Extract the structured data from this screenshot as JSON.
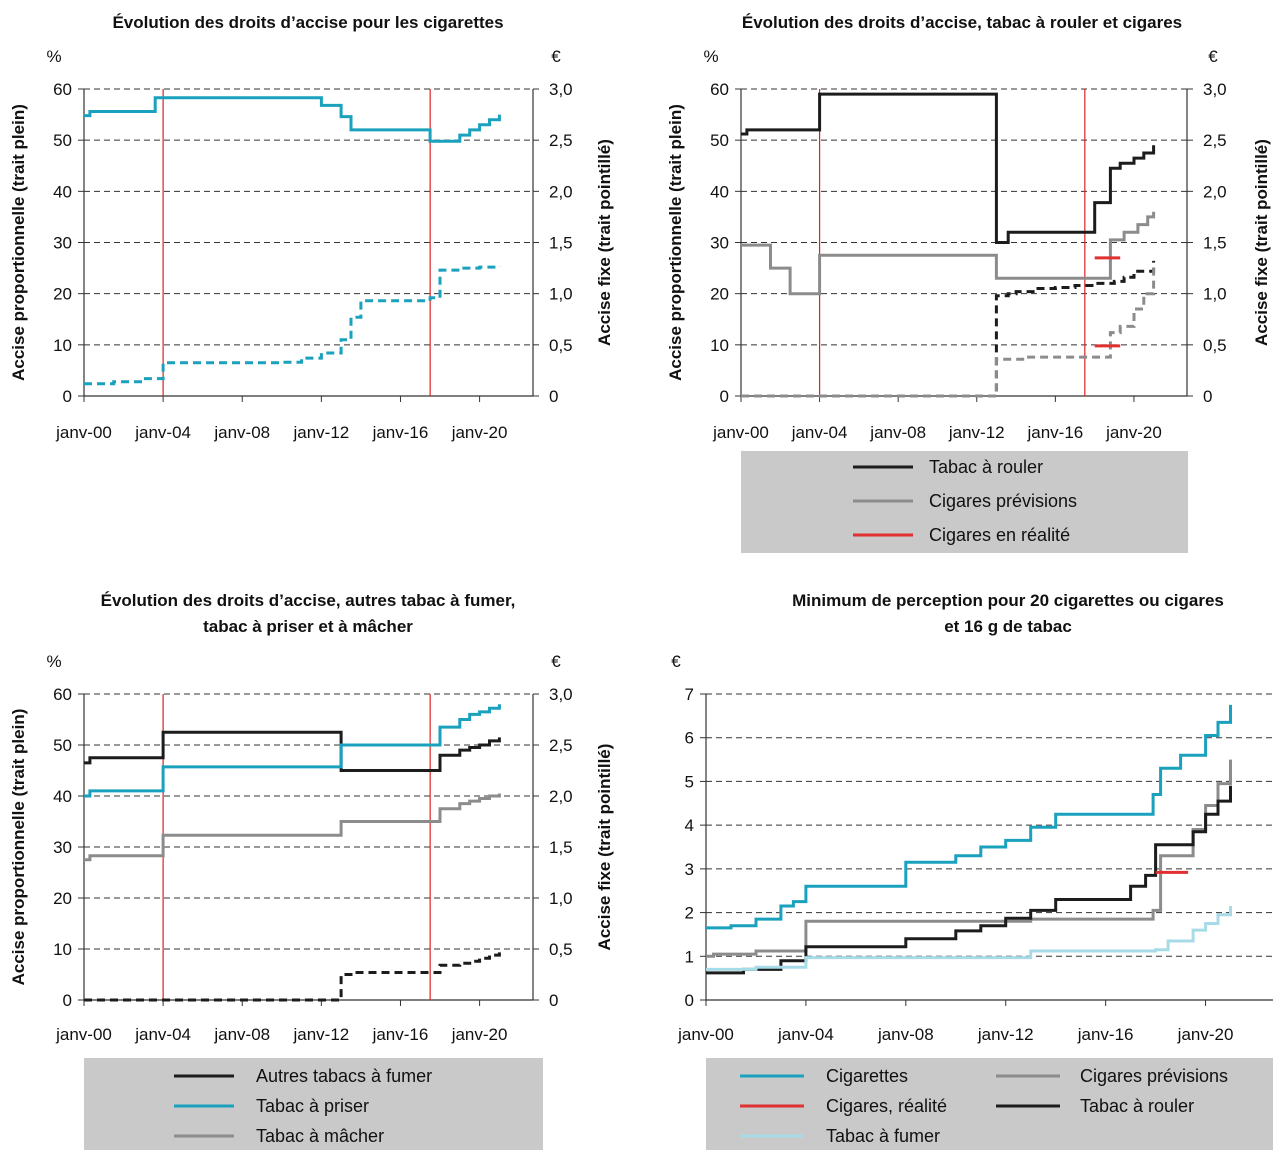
{
  "chart_data": [
    {
      "type": "line",
      "title": "Évolution des droits d’accise pour les cigarettes",
      "ylabel": "Accise proportionnelle (trait plein)",
      "y2label": "Accise fixe (trait pointillé)",
      "yunit": "%",
      "y2unit": "€",
      "xticks": [
        "janv-00",
        "janv-04",
        "janv-08",
        "janv-12",
        "janv-16",
        "janv-20"
      ],
      "xlim": [
        2000,
        2022.7
      ],
      "ylim": [
        0,
        60
      ],
      "y2lim": [
        0,
        3.0
      ],
      "yticks": [
        "0",
        "10",
        "20",
        "30",
        "40",
        "50",
        "60"
      ],
      "y2ticks": [
        "0",
        "0,5",
        "1,0",
        "1,5",
        "2,0",
        "2,5",
        "3,0"
      ],
      "grid": true,
      "vlines": [
        2004.0,
        2017.5
      ],
      "series": [
        {
          "axis": "left",
          "style": "solid",
          "color": "#1aa1be",
          "x": [
            2000.0,
            2000.3,
            2003.6,
            2003.6,
            2010.9,
            2012.0,
            2013.0,
            2013.5,
            2017.5,
            2018.0,
            2019.0,
            2019.5,
            2020.0,
            2020.5,
            2021.0
          ],
          "y": [
            54.8,
            55.6,
            55.6,
            58.3,
            58.3,
            56.8,
            54.6,
            52.0,
            49.8,
            49.8,
            51.0,
            52.0,
            53.0,
            54.0,
            55.0
          ]
        },
        {
          "axis": "right",
          "style": "dashed",
          "color": "#1aa1be",
          "x": [
            2000.0,
            2001.5,
            2003.0,
            2004.0,
            2010.0,
            2011.0,
            2012.0,
            2013.0,
            2013.5,
            2014.0,
            2017.5,
            2018.0,
            2019.0,
            2020.0,
            2021.0
          ],
          "y": [
            0.12,
            0.14,
            0.17,
            0.325,
            0.33,
            0.37,
            0.42,
            0.55,
            0.77,
            0.93,
            0.96,
            1.23,
            1.25,
            1.26,
            1.27
          ]
        }
      ]
    },
    {
      "type": "line",
      "title": "Évolution des droits d’accise, tabac à rouler et cigares",
      "ylabel": "Accise proportionnelle (trait plein)",
      "y2label": "Accise fixe (trait pointillé)",
      "yunit": "%",
      "y2unit": "€",
      "xticks": [
        "janv-00",
        "janv-04",
        "janv-08",
        "janv-12",
        "janv-16",
        "janv-20"
      ],
      "xlim": [
        2000,
        2022.7
      ],
      "ylim": [
        0,
        60
      ],
      "y2lim": [
        0,
        3.0
      ],
      "yticks": [
        "0",
        "10",
        "20",
        "30",
        "40",
        "50",
        "60"
      ],
      "y2ticks": [
        "0",
        "0,5",
        "1,0",
        "1,5",
        "2,0",
        "2,5",
        "3,0"
      ],
      "grid": true,
      "vlines": [
        2004.0,
        2017.5
      ],
      "legend": [
        "Tabac à rouler",
        "Cigares prévisions",
        "Cigares en réalité"
      ],
      "series": [
        {
          "name": "Tabac à rouler",
          "axis": "left",
          "style": "solid",
          "color": "#1c1c1c",
          "x": [
            2000.0,
            2000.3,
            2004.0,
            2004.0,
            2013.0,
            2013.0,
            2013.6,
            2017.5,
            2018.0,
            2018.8,
            2019.3,
            2020.0,
            2020.5,
            2021.0
          ],
          "y": [
            51.2,
            52.0,
            52.0,
            59.0,
            59.0,
            30.0,
            32.0,
            32.0,
            37.8,
            44.5,
            45.5,
            46.5,
            47.5,
            49.0
          ]
        },
        {
          "name": "Cigares prévisions",
          "axis": "left",
          "style": "solid",
          "color": "#8c8c8c",
          "x": [
            2000.0,
            2000.8,
            2001.5,
            2002.5,
            2004.0,
            2004.0,
            2013.0,
            2013.0,
            2018.0,
            2018.8,
            2019.5,
            2020.2,
            2020.7,
            2021.0
          ],
          "y": [
            29.5,
            29.5,
            25.0,
            20.0,
            20.0,
            27.5,
            27.5,
            23.0,
            23.0,
            30.5,
            32.0,
            33.5,
            35.0,
            36.0
          ]
        },
        {
          "name": "Cigares en réalité",
          "axis": "left",
          "style": "solid",
          "color": "#e03030",
          "x": [
            2018.0,
            2019.3
          ],
          "y": [
            27.0,
            27.0
          ]
        },
        {
          "name": "Tabac à rouler",
          "axis": "right",
          "style": "dashed",
          "color": "#1c1c1c",
          "x": [
            2000.0,
            2013.0,
            2013.0,
            2013.6,
            2014.0,
            2015.0,
            2016.0,
            2017.0,
            2018.0,
            2019.0,
            2019.5,
            2020.0,
            2021.0
          ],
          "y": [
            0.0,
            0.0,
            0.98,
            1.0,
            1.02,
            1.05,
            1.06,
            1.08,
            1.1,
            1.12,
            1.16,
            1.22,
            1.32
          ]
        },
        {
          "name": "Cigares prévisions",
          "axis": "right",
          "style": "dashed",
          "color": "#8c8c8c",
          "x": [
            2000.0,
            2013.0,
            2013.0,
            2014.5,
            2018.0,
            2018.8,
            2019.3,
            2020.0,
            2020.5,
            2021.0
          ],
          "y": [
            0.0,
            0.0,
            0.36,
            0.38,
            0.38,
            0.62,
            0.68,
            0.85,
            1.0,
            1.3
          ]
        },
        {
          "name": "Cigares en réalité",
          "axis": "right",
          "style": "solid",
          "color": "#e03030",
          "x": [
            2018.0,
            2019.3
          ],
          "y": [
            0.49,
            0.49
          ]
        }
      ]
    },
    {
      "type": "line",
      "title": "Évolution des droits d’accise, autres tabac à fumer,",
      "title_line2": "tabac à priser et à mâcher",
      "ylabel": "Accise proportionnelle (trait plein)",
      "y2label": "Accise fixe (trait pointillé)",
      "yunit": "%",
      "y2unit": "€",
      "xticks": [
        "janv-00",
        "janv-04",
        "janv-08",
        "janv-12",
        "janv-16",
        "janv-20"
      ],
      "xlim": [
        2000,
        2022.7
      ],
      "ylim": [
        0,
        60
      ],
      "y2lim": [
        0,
        3.0
      ],
      "yticks": [
        "0",
        "10",
        "20",
        "30",
        "40",
        "50",
        "60"
      ],
      "y2ticks": [
        "0",
        "0,5",
        "1,0",
        "1,5",
        "2,0",
        "2,5",
        "3,0"
      ],
      "grid": true,
      "vlines": [
        2004.0,
        2017.5
      ],
      "legend": [
        "Autres tabacs à fumer",
        "Tabac à priser",
        "Tabac à mâcher"
      ],
      "series": [
        {
          "name": "Autres tabacs à fumer",
          "axis": "left",
          "style": "solid",
          "color": "#1c1c1c",
          "x": [
            2000.0,
            2000.3,
            2004.0,
            2004.0,
            2013.0,
            2013.0,
            2018.0,
            2018.0,
            2019.0,
            2019.5,
            2020.0,
            2020.5,
            2021.0
          ],
          "y": [
            46.5,
            47.5,
            47.5,
            52.5,
            52.5,
            45.0,
            45.0,
            48.0,
            49.0,
            49.5,
            50.0,
            50.8,
            51.5
          ]
        },
        {
          "name": "Tabac à priser",
          "axis": "left",
          "style": "solid",
          "color": "#1aa1be",
          "x": [
            2000.0,
            2000.3,
            2004.0,
            2004.0,
            2013.0,
            2013.0,
            2018.0,
            2018.0,
            2019.0,
            2019.5,
            2020.0,
            2020.5,
            2021.0
          ],
          "y": [
            40.0,
            41.0,
            41.0,
            45.7,
            45.7,
            50.0,
            50.0,
            53.5,
            55.0,
            56.0,
            56.5,
            57.2,
            58.0
          ]
        },
        {
          "name": "Tabac à mâcher",
          "axis": "left",
          "style": "solid",
          "color": "#8c8c8c",
          "x": [
            2000.0,
            2000.3,
            2004.0,
            2004.0,
            2013.0,
            2013.0,
            2018.0,
            2018.0,
            2019.0,
            2019.5,
            2020.0,
            2020.5,
            2021.0
          ],
          "y": [
            27.5,
            28.3,
            28.3,
            32.3,
            32.3,
            35.0,
            35.0,
            37.5,
            38.5,
            39.0,
            39.5,
            40.0,
            40.5
          ]
        },
        {
          "name": "Autres tabacs à fumer",
          "axis": "right",
          "style": "dashed",
          "color": "#1c1c1c",
          "x": [
            2000.0,
            2013.0,
            2013.0,
            2013.5,
            2018.0,
            2018.0,
            2019.0,
            2019.5,
            2020.0,
            2020.5,
            2021.0
          ],
          "y": [
            0.0,
            0.0,
            0.25,
            0.27,
            0.28,
            0.34,
            0.36,
            0.38,
            0.41,
            0.44,
            0.47
          ]
        }
      ]
    },
    {
      "type": "line",
      "title": "Minimum de perception pour 20 cigarettes ou cigares",
      "title_line2": "et 16 g de tabac",
      "yunit": "€",
      "xticks": [
        "janv-00",
        "janv-04",
        "janv-08",
        "janv-12",
        "janv-16",
        "janv-20"
      ],
      "xlim": [
        2000,
        2022.7
      ],
      "ylim": [
        0,
        7
      ],
      "yticks": [
        "0",
        "1",
        "2",
        "3",
        "4",
        "5",
        "6",
        "7"
      ],
      "grid": true,
      "legend": [
        "Cigarettes",
        "Cigares, réalité",
        "Tabac à fumer",
        "Cigares prévisions",
        "Tabac à rouler"
      ],
      "series": [
        {
          "name": "Cigarettes",
          "style": "solid",
          "color": "#1aa1be",
          "x": [
            2000.0,
            2001.0,
            2002.0,
            2003.0,
            2003.5,
            2004.0,
            2008.0,
            2010.0,
            2011.0,
            2012.0,
            2013.0,
            2014.0,
            2017.9,
            2018.2,
            2019.0,
            2020.0,
            2020.5,
            2021.0
          ],
          "y": [
            1.65,
            1.7,
            1.85,
            2.15,
            2.25,
            2.6,
            3.15,
            3.3,
            3.5,
            3.65,
            3.95,
            4.25,
            4.7,
            5.3,
            5.6,
            6.05,
            6.35,
            6.75
          ]
        },
        {
          "name": "Cigares prévisions",
          "style": "solid",
          "color": "#8c8c8c",
          "x": [
            2000.0,
            2000.3,
            2002.0,
            2004.0,
            2013.0,
            2017.9,
            2018.2,
            2019.5,
            2020.0,
            2020.5,
            2021.0
          ],
          "y": [
            1.0,
            1.05,
            1.12,
            1.8,
            1.85,
            2.05,
            3.3,
            3.9,
            4.45,
            4.95,
            5.5
          ]
        },
        {
          "name": "Tabac à rouler",
          "style": "solid",
          "color": "#1c1c1c",
          "x": [
            2000.0,
            2001.5,
            2003.0,
            2004.0,
            2008.0,
            2010.0,
            2011.0,
            2012.0,
            2013.0,
            2014.0,
            2017.0,
            2017.6,
            2018.0,
            2019.0,
            2019.5,
            2020.0,
            2020.5,
            2021.0
          ],
          "y": [
            0.62,
            0.7,
            0.9,
            1.22,
            1.4,
            1.58,
            1.7,
            1.87,
            2.05,
            2.3,
            2.6,
            2.85,
            3.55,
            3.55,
            3.85,
            4.25,
            4.55,
            4.9
          ]
        },
        {
          "name": "Tabac à fumer",
          "style": "solid",
          "color": "#a8dbe8",
          "x": [
            2000.0,
            2002.0,
            2004.0,
            2013.0,
            2018.0,
            2018.5,
            2019.5,
            2020.0,
            2020.5,
            2021.0
          ],
          "y": [
            0.7,
            0.75,
            0.97,
            1.12,
            1.15,
            1.35,
            1.6,
            1.75,
            1.95,
            2.15
          ]
        },
        {
          "name": "Cigares, réalité",
          "style": "solid",
          "color": "#e03030",
          "x": [
            2018.0,
            2019.3
          ],
          "y": [
            2.92,
            2.92
          ]
        }
      ]
    }
  ]
}
